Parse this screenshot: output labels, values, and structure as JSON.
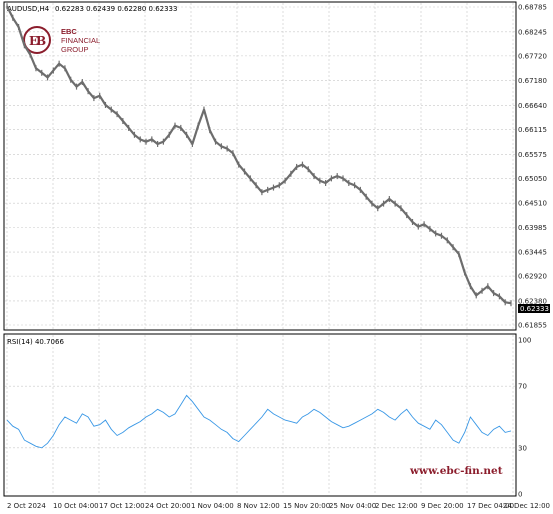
{
  "header": {
    "symbol": "AUDUSD,H4",
    "ohlc": "0.62283 0.62439 0.62280 0.62333"
  },
  "logo": {
    "line1": "EBC",
    "line2": "FINANCIAL",
    "line3": "GROUP",
    "color": "#8b1d2c"
  },
  "watermark": "www.ebc-fin.net",
  "colors": {
    "price": "#6d6d6d",
    "rsi": "#3a98e6",
    "grid": "#c8c8c8",
    "badge_bg": "#000000"
  },
  "chart_data": [
    {
      "type": "line",
      "name": "price",
      "title": "AUDUSD,H4",
      "x_labels": [
        "2 Oct 2024",
        "10 Oct 04:00",
        "17 Oct 12:00",
        "24 Oct 20:00",
        "1 Nov 04:00",
        "8 Nov 12:00",
        "15 Nov 20:00",
        "25 Nov 04:00",
        "2 Dec 12:00",
        "9 Dec 20:00",
        "17 Dec 04:00",
        "24 Dec 12:00"
      ],
      "y_ticks": [
        "0.68785",
        "0.68245",
        "0.67720",
        "0.67180",
        "0.66640",
        "0.66115",
        "0.65575",
        "0.65050",
        "0.64510",
        "0.63985",
        "0.63445",
        "0.62920",
        "0.62380",
        "0.61855"
      ],
      "ylim": [
        0.61855,
        0.68785
      ],
      "current_value": "0.62333",
      "values": [
        0.688,
        0.6855,
        0.6835,
        0.6795,
        0.6775,
        0.6745,
        0.6735,
        0.6725,
        0.674,
        0.6755,
        0.6745,
        0.672,
        0.6705,
        0.6715,
        0.6695,
        0.668,
        0.6685,
        0.6665,
        0.6655,
        0.6645,
        0.663,
        0.6615,
        0.66,
        0.659,
        0.6585,
        0.659,
        0.658,
        0.6585,
        0.66,
        0.662,
        0.6615,
        0.66,
        0.658,
        0.662,
        0.6655,
        0.661,
        0.6585,
        0.6575,
        0.657,
        0.656,
        0.6535,
        0.652,
        0.6505,
        0.649,
        0.6475,
        0.648,
        0.6485,
        0.649,
        0.65,
        0.6515,
        0.653,
        0.6535,
        0.6525,
        0.651,
        0.65,
        0.6495,
        0.6505,
        0.651,
        0.6505,
        0.6495,
        0.649,
        0.648,
        0.6465,
        0.645,
        0.644,
        0.645,
        0.646,
        0.645,
        0.644,
        0.6425,
        0.641,
        0.64,
        0.6405,
        0.6395,
        0.6385,
        0.638,
        0.637,
        0.6355,
        0.634,
        0.63,
        0.627,
        0.625,
        0.626,
        0.627,
        0.6255,
        0.6248,
        0.6235,
        0.6233
      ]
    },
    {
      "type": "line",
      "name": "rsi",
      "label": "RSI(14) 40.7066",
      "y_ticks": [
        "100",
        "70",
        "30",
        "0"
      ],
      "ylim": [
        0,
        100
      ],
      "values": [
        48,
        44,
        42,
        35,
        33,
        31,
        30,
        33,
        38,
        45,
        50,
        48,
        46,
        52,
        50,
        44,
        45,
        48,
        42,
        38,
        40,
        43,
        45,
        47,
        50,
        52,
        55,
        53,
        50,
        52,
        58,
        64,
        60,
        55,
        50,
        48,
        45,
        42,
        40,
        36,
        34,
        38,
        42,
        46,
        50,
        55,
        52,
        50,
        48,
        47,
        46,
        50,
        52,
        55,
        53,
        50,
        47,
        45,
        43,
        44,
        46,
        48,
        50,
        52,
        55,
        53,
        50,
        48,
        52,
        55,
        50,
        46,
        44,
        42,
        48,
        45,
        40,
        35,
        33,
        40,
        50,
        45,
        40,
        38,
        42,
        44,
        40,
        41
      ]
    }
  ]
}
